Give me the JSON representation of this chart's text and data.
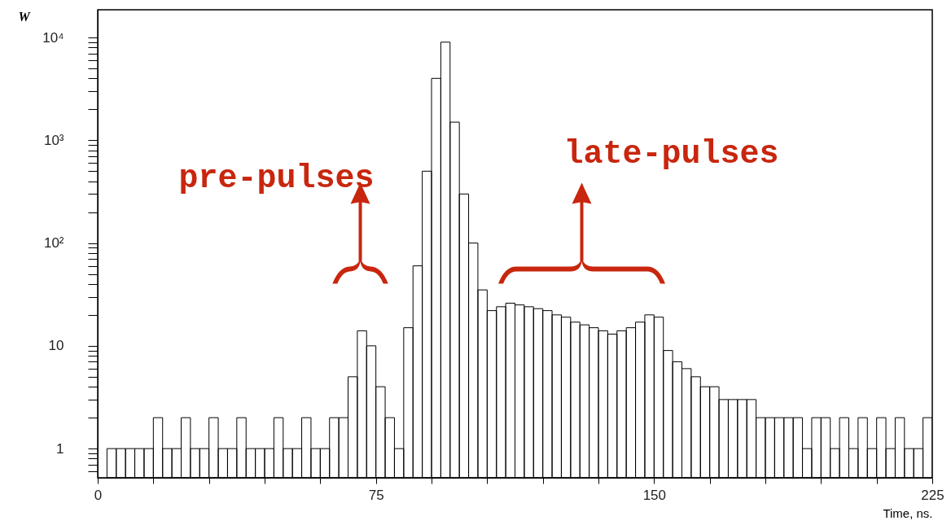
{
  "chart_data": {
    "type": "histogram",
    "xlabel": "Time, ns.",
    "ylabel": "W",
    "log": true,
    "color": "#000000",
    "bins": [
      2.5,
      5,
      7.5,
      10,
      12.5,
      15,
      17.5,
      20,
      22.5,
      25,
      27.5,
      30,
      32.5,
      35,
      37.5,
      40,
      42.5,
      45,
      47.5,
      50,
      52.5,
      55,
      57.5,
      60,
      62.5,
      65,
      67.5,
      70,
      72.5,
      75,
      77.5,
      80,
      82.5,
      85,
      87.5,
      90,
      92.5,
      95,
      97.5,
      100,
      102.5,
      105,
      107.5,
      110,
      112.5,
      115,
      117.5,
      120,
      122.5,
      125,
      127.5,
      130,
      132.5,
      135,
      137.5,
      140,
      142.5,
      145,
      147.5,
      150,
      152.5,
      155,
      157.5,
      160,
      162.5,
      165,
      167.5,
      170,
      172.5,
      175,
      177.5,
      180,
      182.5,
      185,
      187.5,
      190,
      192.5,
      195,
      197.5,
      200,
      202.5,
      205,
      207.5,
      210,
      212.5,
      215,
      217.5,
      220,
      222.5,
      225
    ],
    "values": [
      1,
      1,
      1,
      1,
      1,
      2,
      1,
      1,
      2,
      1,
      1,
      2,
      1,
      1,
      2,
      1,
      1,
      1,
      2,
      1,
      1,
      2,
      1,
      1,
      2,
      2,
      5,
      14,
      10,
      4,
      2,
      1,
      15,
      60,
      500,
      4000,
      9000,
      1500,
      300,
      100,
      35,
      22,
      24,
      26,
      25,
      24,
      23,
      22,
      20,
      19,
      17,
      16,
      15,
      14,
      13,
      14,
      15,
      17,
      20,
      19,
      9,
      7,
      6,
      5,
      4,
      4,
      3,
      3,
      3,
      3,
      2,
      2,
      2,
      2,
      2,
      1,
      2,
      2,
      1,
      2,
      1,
      2,
      1,
      2,
      1,
      2,
      1,
      1,
      2
    ],
    "xlim": [
      0,
      225
    ],
    "xticks": [
      0,
      {
        "value": 15,
        "label": null
      },
      {
        "value": 30,
        "label": null
      },
      {
        "value": 45,
        "label": null
      },
      {
        "value": 60,
        "label": null
      },
      75,
      {
        "value": 90,
        "label": null
      },
      {
        "value": 105,
        "label": null
      },
      {
        "value": 120,
        "label": null
      },
      {
        "value": 135,
        "label": null
      },
      150,
      {
        "value": 165,
        "label": null
      },
      {
        "value": 180,
        "label": null
      },
      {
        "value": 195,
        "label": null
      },
      {
        "value": 210,
        "label": null
      },
      225
    ],
    "ylim": [
      0.52,
      18600
    ],
    "yticks": [
      {
        "value": 0.6,
        "label": null
      },
      {
        "value": 0.7,
        "label": null
      },
      {
        "value": 0.8,
        "label": null
      },
      {
        "value": 0.9,
        "label": null
      },
      1,
      {
        "value": 2,
        "label": null
      },
      {
        "value": 3,
        "label": null
      },
      {
        "value": 4,
        "label": null
      },
      {
        "value": 5,
        "label": null
      },
      {
        "value": 6,
        "label": null
      },
      {
        "value": 7,
        "label": null
      },
      {
        "value": 8,
        "label": null
      },
      {
        "value": 9,
        "label": null
      },
      10,
      {
        "value": 20,
        "label": null
      },
      {
        "value": 30,
        "label": null
      },
      {
        "value": 40,
        "label": null
      },
      {
        "value": 50,
        "label": null
      },
      {
        "value": 60,
        "label": null
      },
      {
        "value": 70,
        "label": null
      },
      {
        "value": 80,
        "label": null
      },
      {
        "value": 90,
        "label": null
      },
      {
        "value": 100,
        "label": "10²"
      },
      {
        "value": 200,
        "label": null
      },
      {
        "value": 300,
        "label": null
      },
      {
        "value": 400,
        "label": null
      },
      {
        "value": 500,
        "label": null
      },
      {
        "value": 600,
        "label": null
      },
      {
        "value": 700,
        "label": null
      },
      {
        "value": 800,
        "label": null
      },
      {
        "value": 900,
        "label": null
      },
      {
        "value": 1000,
        "label": "10³"
      },
      {
        "value": 2000,
        "label": null
      },
      {
        "value": 3000,
        "label": null
      },
      {
        "value": 4000,
        "label": null
      },
      {
        "value": 5000,
        "label": null
      },
      {
        "value": 6000,
        "label": null
      },
      {
        "value": 7000,
        "label": null
      },
      {
        "value": 8000,
        "label": null
      },
      {
        "value": 9000,
        "label": null
      },
      {
        "value": 10000,
        "label": "10⁴"
      }
    ],
    "annotations": [
      "pre-pulses",
      "late-pulses"
    ]
  }
}
